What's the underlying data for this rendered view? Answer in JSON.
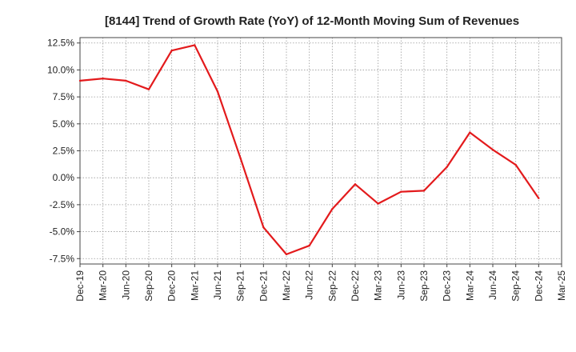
{
  "chart_data": {
    "type": "line",
    "title": "[8144]  Trend of Growth Rate (YoY) of 12-Month Moving Sum of Revenues",
    "xlabel": "",
    "ylabel": "",
    "categories": [
      "Dec-19",
      "Mar-20",
      "Jun-20",
      "Sep-20",
      "Dec-20",
      "Mar-21",
      "Jun-21",
      "Sep-21",
      "Dec-21",
      "Mar-22",
      "Jun-22",
      "Sep-22",
      "Dec-22",
      "Mar-23",
      "Jun-23",
      "Sep-23",
      "Dec-23",
      "Mar-24",
      "Jun-24",
      "Sep-24",
      "Dec-24",
      "Mar-25"
    ],
    "series": [
      {
        "color": "#e31a1c",
        "values": [
          9.0,
          9.2,
          9.0,
          8.2,
          11.8,
          12.3,
          8.0,
          1.8,
          -4.6,
          -7.1,
          -6.3,
          -2.9,
          -0.6,
          -2.4,
          -1.3,
          -1.2,
          1.0,
          4.2,
          2.6,
          1.2,
          -1.9,
          null
        ]
      }
    ],
    "ylim": [
      -8.0,
      13.0
    ],
    "yticks": [
      12.5,
      10.0,
      7.5,
      5.0,
      2.5,
      0.0,
      -2.5,
      -5.0,
      -7.5
    ],
    "ytick_labels": [
      "12.5%",
      "10.0%",
      "7.5%",
      "5.0%",
      "2.5%",
      "0.0%",
      "-2.5%",
      "-5.0%",
      "-7.5%"
    ],
    "grid": true,
    "legend": "none"
  }
}
